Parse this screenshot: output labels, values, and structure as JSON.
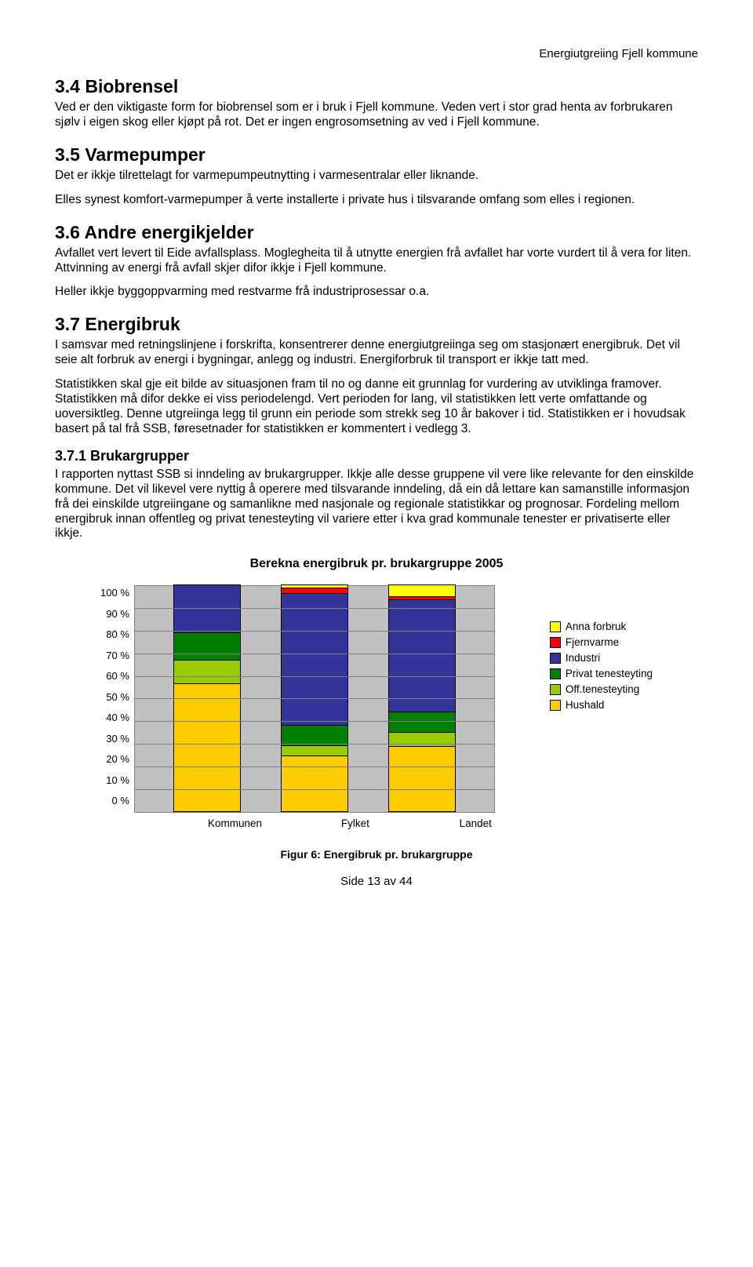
{
  "header": {
    "right": "Energiutgreiing Fjell kommune"
  },
  "sections": {
    "s34": {
      "heading": "3.4  Biobrensel",
      "p1": "Ved er den viktigaste form for biobrensel som er i bruk i Fjell kommune. Veden vert i stor grad henta av forbrukaren sjølv i eigen skog eller kjøpt på rot. Det er ingen engrosomsetning av ved i Fjell kommune."
    },
    "s35": {
      "heading": "3.5  Varmepumper",
      "p1": "Det er ikkje tilrettelagt for varmepumpeutnytting i varmesentralar eller liknande.",
      "p2": "Elles synest komfort-varmepumper å verte installerte i private hus i tilsvarande omfang som elles i regionen."
    },
    "s36": {
      "heading": "3.6  Andre energikjelder",
      "p1": "Avfallet vert levert til Eide avfallsplass. Moglegheita til å utnytte energien frå avfallet har vorte vurdert til å vera for liten. Attvinning av energi frå avfall skjer difor ikkje i Fjell kommune.",
      "p2": "Heller ikkje byggoppvarming med restvarme frå industriprosessar o.a."
    },
    "s37": {
      "heading": "3.7  Energibruk",
      "p1": "I samsvar med retningslinjene i forskrifta, konsentrerer denne energiutgreiinga seg om stasjonært energibruk. Det vil seie alt forbruk av energi i bygningar, anlegg og industri. Energiforbruk til transport er ikkje tatt med.",
      "p2": "Statistikken skal gje eit bilde av situasjonen fram til no og danne eit grunnlag for vurdering av utviklinga framover. Statistikken må difor dekke ei viss periodelengd. Vert perioden for lang, vil statistikken lett verte omfattande og uoversiktleg. Denne utgreiinga legg til grunn ein periode som strekk seg 10 år bakover i tid. Statistikken er i hovudsak basert på tal frå SSB, føresetnader for statistikken er kommentert i vedlegg 3."
    },
    "s371": {
      "heading": "3.7.1 Brukargrupper",
      "p1": "I rapporten nyttast SSB si inndeling av brukargrupper. Ikkje alle desse gruppene vil vere like relevante for den einskilde kommune. Det vil likevel vere nyttig å operere med tilsvarande inndeling, då ein då lettare kan samanstille informasjon frå dei einskilde utgreiingane og samanlikne med nasjonale og regionale statistikkar og prognosar. Fordeling mellom energibruk innan offentleg og privat tenesteyting vil variere etter i kva grad kommunale tenester er privatiserte eller ikkje."
    }
  },
  "chart": {
    "type": "stacked-bar",
    "title": "Berekna energibruk pr. brukargruppe 2005",
    "ylim": [
      0,
      100
    ],
    "ytick_step": 10,
    "y_labels": [
      "100 %",
      "90 %",
      "80 %",
      "70 %",
      "60 %",
      "50 %",
      "40 %",
      "30 %",
      "20 %",
      "10 %",
      "0 %"
    ],
    "background_color": "#c0c0c0",
    "grid_color": "#808080",
    "categories": [
      "Kommunen",
      "Fylket",
      "Landet"
    ],
    "series_order": [
      "hushald",
      "off_tenesteyting",
      "privat_tenesteyting",
      "industri",
      "fjernvarme",
      "anna_forbruk"
    ],
    "colors": {
      "anna_forbruk": "#ffff00",
      "fjernvarme": "#ff0000",
      "industri": "#333399",
      "privat_tenesteyting": "#008000",
      "off_tenesteyting": "#99cc00",
      "hushald": "#ffcc00"
    },
    "data": {
      "Kommunen": {
        "hushald": 57,
        "off_tenesteyting": 10,
        "privat_tenesteyting": 12,
        "industri": 21,
        "fjernvarme": 0,
        "anna_forbruk": 0
      },
      "Fylket": {
        "hushald": 25,
        "off_tenesteyting": 4,
        "privat_tenesteyting": 9,
        "industri": 59,
        "fjernvarme": 2,
        "anna_forbruk": 1
      },
      "Landet": {
        "hushald": 29,
        "off_tenesteyting": 6,
        "privat_tenesteyting": 9,
        "industri": 50,
        "fjernvarme": 1,
        "anna_forbruk": 5
      }
    },
    "legend": [
      {
        "key": "anna_forbruk",
        "label": "Anna forbruk"
      },
      {
        "key": "fjernvarme",
        "label": "Fjernvarme"
      },
      {
        "key": "industri",
        "label": "Industri"
      },
      {
        "key": "privat_tenesteyting",
        "label": "Privat tenesteyting"
      },
      {
        "key": "off_tenesteyting",
        "label": "Off.tenesteyting"
      },
      {
        "key": "hushald",
        "label": "Hushald"
      }
    ],
    "caption": "Figur 6: Energibruk pr. brukargruppe"
  },
  "footer": {
    "page": "Side 13 av 44"
  }
}
